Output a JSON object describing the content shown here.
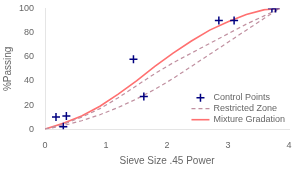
{
  "chart_data": {
    "type": "line",
    "xlabel": "Sieve Size .45 Power",
    "ylabel": "%Passing",
    "xlim": [
      0,
      4
    ],
    "ylim": [
      0,
      100
    ],
    "xticks": [
      0,
      1,
      2,
      3,
      4
    ],
    "yticks": [
      0,
      20,
      40,
      60,
      80,
      100
    ],
    "grid": false,
    "legend": "lower right",
    "series": [
      {
        "name": "Control Points",
        "type": "scatter",
        "marker": "plus",
        "color": "#000080",
        "x": [
          0.18,
          0.3,
          0.35,
          1.45,
          1.62,
          2.85,
          3.1,
          3.72,
          3.78
        ],
        "values": [
          10,
          2,
          11,
          58,
          27,
          90,
          90,
          100,
          100
        ]
      },
      {
        "name": "Restricted Zone",
        "type": "line",
        "line_style": "dashed",
        "color": "#C090A0",
        "x": [
          0.0,
          0.3,
          0.6,
          0.9,
          1.2,
          1.5,
          1.8,
          2.1,
          2.4,
          2.7,
          3.0,
          3.3,
          3.6,
          3.85
        ],
        "values": [
          0,
          4,
          10,
          17,
          26,
          36,
          46,
          55,
          63,
          71,
          79,
          87,
          94,
          100
        ]
      },
      {
        "name": "Restricted Zone",
        "type": "line",
        "line_style": "dashed",
        "color": "#C090A0",
        "x": [
          0.0,
          0.3,
          0.6,
          0.9,
          1.2,
          1.5,
          1.8,
          2.1,
          2.4,
          2.7,
          3.0,
          3.3,
          3.6,
          3.85
        ],
        "values": [
          0,
          3,
          7,
          12,
          18,
          25,
          33,
          42,
          52,
          62,
          72,
          82,
          92,
          100
        ]
      },
      {
        "name": "Mixture Gradation",
        "type": "line",
        "line_style": "solid",
        "color": "#FF7070",
        "x": [
          0.0,
          0.3,
          0.6,
          0.9,
          1.2,
          1.5,
          1.8,
          2.1,
          2.4,
          2.7,
          3.0,
          3.3,
          3.6,
          3.85
        ],
        "values": [
          0,
          5,
          11,
          19,
          29,
          40,
          52,
          63,
          73,
          82,
          89,
          95,
          99,
          100
        ]
      }
    ]
  }
}
